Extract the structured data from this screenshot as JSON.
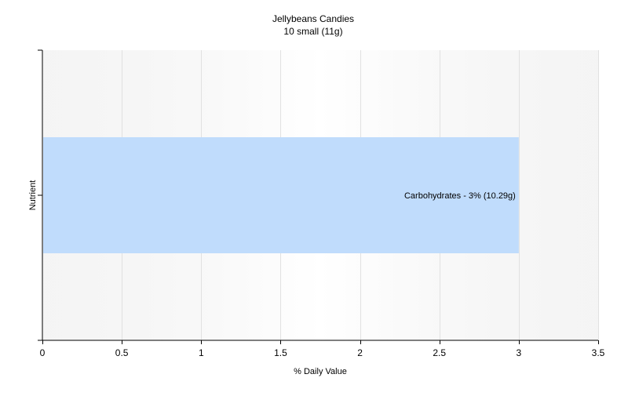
{
  "chart_data": {
    "type": "bar",
    "orientation": "horizontal",
    "title": "Jellybeans Candies",
    "subtitle": "10 small (11g)",
    "xlabel": "% Daily Value",
    "ylabel": "Nutrient",
    "xlim": [
      0,
      3.5
    ],
    "x_ticks": [
      0,
      0.5,
      1,
      1.5,
      2,
      2.5,
      3,
      3.5
    ],
    "x_tick_labels": [
      "0",
      "0.5",
      "1",
      "1.5",
      "2",
      "2.5",
      "3",
      "3.5"
    ],
    "categories": [
      "Carbohydrates"
    ],
    "values": [
      3
    ],
    "data_labels": [
      "Carbohydrates - 3% (10.29g)"
    ],
    "grid": true,
    "bar_color": "#c0dcfc",
    "plot_background": [
      "#ececec",
      "#ffffff"
    ],
    "gridline_color": "#e1e1e1"
  }
}
